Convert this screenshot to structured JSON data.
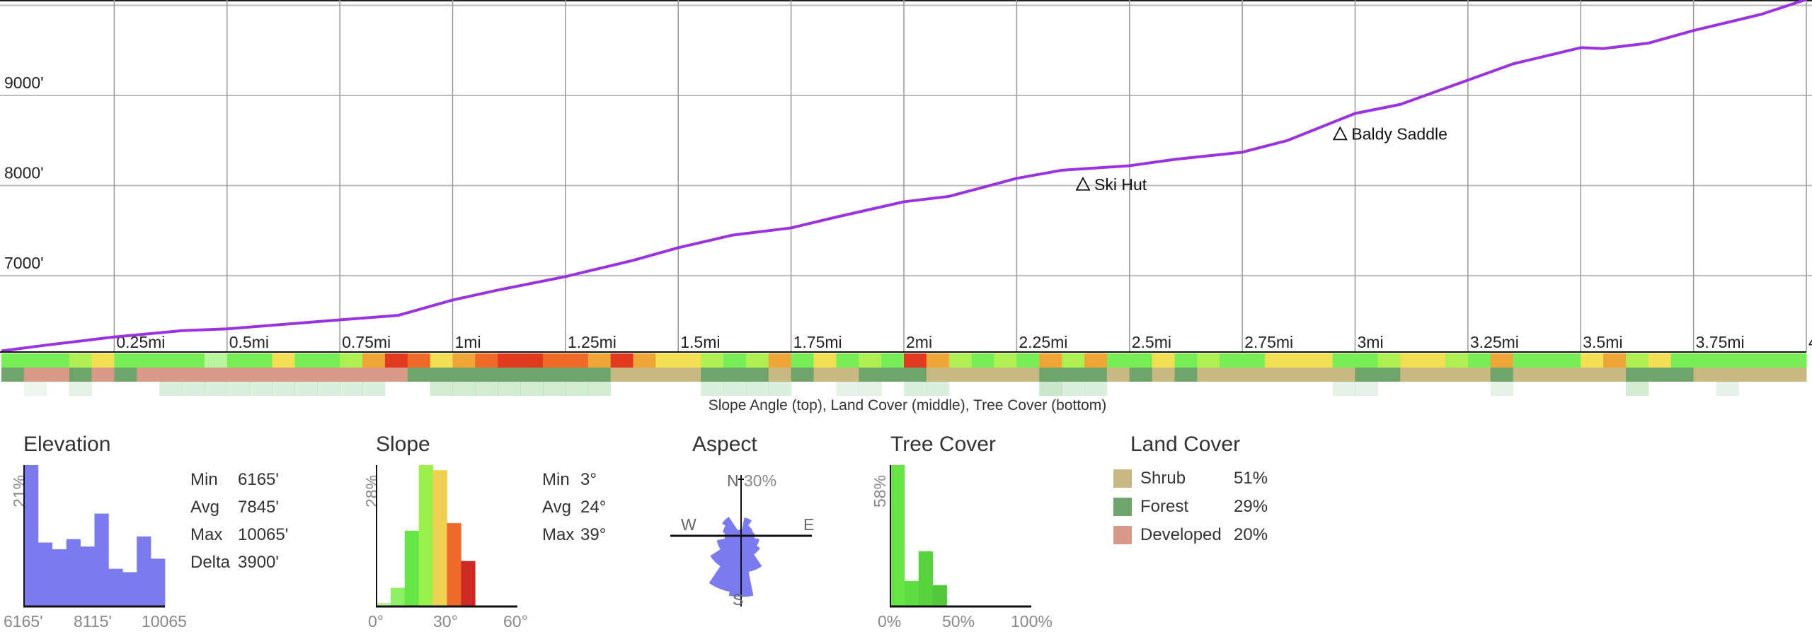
{
  "colors": {
    "profile_line": "#9933e0",
    "elev_hist": "#7b7bef",
    "shrub": "#c9b882",
    "forest": "#6fa56b",
    "developed": "#d99a88",
    "grid": "#bbbbbb"
  },
  "chart_data": [
    {
      "type": "line",
      "title": "",
      "xlabel": "",
      "ylabel": "",
      "xlim": [
        0,
        4
      ],
      "ylim": [
        6150,
        10065
      ],
      "x_ticks": [
        {
          "v": 0.25,
          "label": "0.25mi"
        },
        {
          "v": 0.5,
          "label": "0.5mi"
        },
        {
          "v": 0.75,
          "label": "0.75mi"
        },
        {
          "v": 1,
          "label": "1mi"
        },
        {
          "v": 1.25,
          "label": "1.25mi"
        },
        {
          "v": 1.5,
          "label": "1.5mi"
        },
        {
          "v": 1.75,
          "label": "1.75mi"
        },
        {
          "v": 2,
          "label": "2mi"
        },
        {
          "v": 2.25,
          "label": "2.25mi"
        },
        {
          "v": 2.5,
          "label": "2.5mi"
        },
        {
          "v": 2.75,
          "label": "2.75mi"
        },
        {
          "v": 3,
          "label": "3mi"
        },
        {
          "v": 3.25,
          "label": "3.25mi"
        },
        {
          "v": 3.5,
          "label": "3.5mi"
        },
        {
          "v": 3.75,
          "label": "3.75mi"
        },
        {
          "v": 4,
          "label": "4"
        }
      ],
      "y_ticks": [
        {
          "v": 9000,
          "label": "9000'"
        },
        {
          "v": 8000,
          "label": "8000'"
        },
        {
          "v": 7000,
          "label": "7000'"
        }
      ],
      "grid": true,
      "x": [
        0,
        0.1,
        0.25,
        0.4,
        0.5,
        0.65,
        0.75,
        0.88,
        1.0,
        1.1,
        1.25,
        1.4,
        1.5,
        1.62,
        1.75,
        1.85,
        2.0,
        2.1,
        2.25,
        2.35,
        2.5,
        2.6,
        2.75,
        2.85,
        2.95,
        3.0,
        3.1,
        3.25,
        3.35,
        3.5,
        3.55,
        3.65,
        3.75,
        3.9,
        4.0
      ],
      "y": [
        6165,
        6230,
        6320,
        6390,
        6410,
        6470,
        6510,
        6560,
        6730,
        6840,
        6990,
        7170,
        7310,
        7450,
        7530,
        7650,
        7820,
        7880,
        8080,
        8170,
        8220,
        8290,
        8370,
        8500,
        8700,
        8800,
        8900,
        9170,
        9350,
        9530,
        9520,
        9580,
        9720,
        9900,
        10065
      ],
      "waypoints": [
        {
          "name": "Ski Hut",
          "mi": 2.4,
          "elev": 8100
        },
        {
          "name": "Baldy Saddle",
          "mi": 2.97,
          "elev": 8660
        }
      ],
      "strips": {
        "caption": "Slope Angle (top), Land Cover (middle), Tree Cover (bottom)",
        "cell_mi": 0.05,
        "slope_deg": [
          15,
          18,
          12,
          20,
          26,
          15,
          18,
          14,
          17,
          10,
          16,
          18,
          27,
          19,
          16,
          22,
          32,
          36,
          34,
          28,
          30,
          35,
          37,
          36,
          33,
          35,
          32,
          36,
          30,
          27,
          25,
          22,
          18,
          20,
          31,
          17,
          26,
          19,
          21,
          18,
          36,
          32,
          24,
          18,
          22,
          17,
          30,
          24,
          31,
          19,
          17,
          26,
          18,
          20,
          17,
          19,
          25,
          27,
          28,
          12,
          18,
          20,
          27,
          29,
          20,
          18,
          31,
          15,
          19,
          17,
          28,
          31,
          22,
          28,
          17,
          19,
          18,
          17,
          16,
          14
        ],
        "land_cover": [
          "F",
          "D",
          "D",
          "F",
          "D",
          "F",
          "D",
          "D",
          "D",
          "D",
          "D",
          "D",
          "D",
          "D",
          "D",
          "D",
          "D",
          "D",
          "F",
          "F",
          "F",
          "F",
          "F",
          "F",
          "F",
          "F",
          "F",
          "S",
          "S",
          "S",
          "S",
          "F",
          "F",
          "F",
          "S",
          "F",
          "S",
          "S",
          "F",
          "F",
          "F",
          "S",
          "S",
          "S",
          "S",
          "S",
          "F",
          "F",
          "F",
          "S",
          "F",
          "S",
          "F",
          "S",
          "S",
          "S",
          "S",
          "S",
          "S",
          "S",
          "F",
          "F",
          "S",
          "S",
          "S",
          "S",
          "F",
          "S",
          "S",
          "S",
          "S",
          "S",
          "F",
          "F",
          "F",
          "S",
          "S",
          "S",
          "S",
          "S"
        ],
        "tree_cover_pct": [
          0,
          10,
          0,
          15,
          0,
          0,
          0,
          20,
          20,
          20,
          20,
          20,
          20,
          20,
          20,
          20,
          20,
          0,
          0,
          25,
          25,
          25,
          25,
          25,
          25,
          25,
          25,
          0,
          0,
          0,
          0,
          20,
          20,
          20,
          20,
          0,
          0,
          15,
          15,
          0,
          20,
          20,
          0,
          0,
          0,
          0,
          30,
          20,
          20,
          0,
          0,
          0,
          0,
          0,
          0,
          0,
          0,
          0,
          0,
          15,
          15,
          0,
          0,
          0,
          0,
          0,
          15,
          0,
          0,
          0,
          0,
          0,
          25,
          0,
          0,
          0,
          15,
          0,
          0,
          0
        ]
      }
    },
    {
      "type": "bar",
      "title": "Elevation",
      "values": [
        21,
        9.5,
        8.5,
        10,
        8.9,
        13.8,
        5.6,
        5.1,
        10.4,
        7.1
      ],
      "ymax": 21,
      "ymax_label": "21%",
      "x_tick_labels": [
        "6165'",
        "8115'",
        "10065"
      ],
      "stats": [
        {
          "label": "Min",
          "value": "6165'"
        },
        {
          "label": "Avg",
          "value": "7845'"
        },
        {
          "label": "Max",
          "value": "10065'"
        },
        {
          "label": "Delta",
          "value": "3900'"
        }
      ]
    },
    {
      "type": "bar",
      "title": "Slope",
      "bin_deg": 6,
      "values": [
        0.7,
        3.7,
        15,
        28,
        27,
        16.5,
        9
      ],
      "bar_colors": [
        "#b5f59a",
        "#8cf060",
        "#66e844",
        "#9bf04a",
        "#f0d050",
        "#ee6a2a",
        "#cc2a22"
      ],
      "ymax": 28,
      "ymax_label": "28%",
      "xlim": [
        0,
        60
      ],
      "x_tick_labels": [
        "0°",
        "30°",
        "60°"
      ],
      "stats": [
        {
          "label": "Min",
          "value": "3°"
        },
        {
          "label": "Avg",
          "value": "24°"
        },
        {
          "label": "Max",
          "value": "39°"
        }
      ]
    },
    {
      "type": "pie",
      "title": "Aspect",
      "directions": [
        "N",
        "NNE",
        "NE",
        "ENE",
        "E",
        "ESE",
        "SE",
        "SSE",
        "S",
        "SSW",
        "SW",
        "WSW",
        "W",
        "WNW",
        "NW",
        "NNW"
      ],
      "values": [
        3,
        9,
        6,
        6,
        6.5,
        9,
        11,
        18,
        30,
        28,
        18,
        12,
        8,
        9,
        11,
        3
      ],
      "rmax": 30,
      "rmax_label": "30%",
      "labels": {
        "n": "N",
        "e": "E",
        "s": "S",
        "w": "W"
      }
    },
    {
      "type": "bar",
      "title": "Tree Cover",
      "bin_pct": 10,
      "values": [
        58,
        10.5,
        22.6,
        8.8
      ],
      "ymax": 58,
      "ymax_label": "58%",
      "xlim": [
        0,
        100
      ],
      "x_tick_labels": [
        "0%",
        "50%",
        "100%"
      ]
    },
    {
      "type": "table",
      "title": "Land Cover",
      "rows": [
        {
          "name": "Shrub",
          "pct": "51%",
          "color": "#c9b882"
        },
        {
          "name": "Forest",
          "pct": "29%",
          "color": "#6fa56b"
        },
        {
          "name": "Developed",
          "pct": "20%",
          "color": "#d99a88"
        }
      ]
    }
  ]
}
